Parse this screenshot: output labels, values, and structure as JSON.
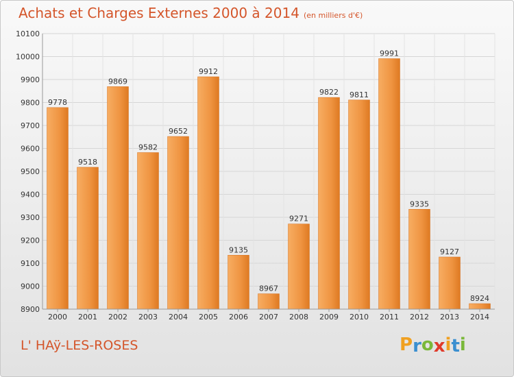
{
  "header": {
    "title": "Achats et Charges Externes 2000 à 2014",
    "unit": "(en milliers d'€)"
  },
  "footer": {
    "place": "L' HAÿ-LES-ROSES",
    "brand": [
      "P",
      "r",
      "o",
      "x",
      "i",
      "t",
      "i"
    ]
  },
  "colors": {
    "title": "#d4552a",
    "bar_light": "#f5a253",
    "bar_dark": "#e07b20",
    "brand": [
      "#f0a020",
      "#3a8fd0",
      "#7ab83a",
      "#e03a2a",
      "#f0a020",
      "#3a8fd0",
      "#7ab83a"
    ]
  },
  "chart_data": {
    "type": "bar",
    "categories": [
      "2000",
      "2001",
      "2002",
      "2003",
      "2004",
      "2005",
      "2006",
      "2007",
      "2008",
      "2009",
      "2010",
      "2011",
      "2012",
      "2013",
      "2014"
    ],
    "values": [
      9778,
      9518,
      9869,
      9582,
      9652,
      9912,
      9135,
      8967,
      9271,
      9822,
      9811,
      9991,
      9335,
      9127,
      8924
    ],
    "title": "Achats et Charges Externes 2000 à 2014",
    "ylim": [
      8900,
      10100
    ],
    "yticks": [
      8900,
      9000,
      9100,
      9200,
      9300,
      9400,
      9500,
      9600,
      9700,
      9800,
      9900,
      10000,
      10100
    ],
    "grid": true
  }
}
